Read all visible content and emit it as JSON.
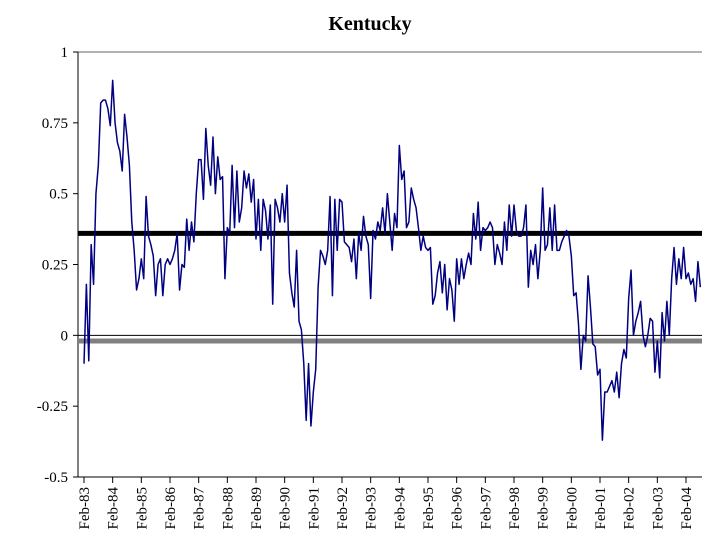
{
  "chart_data": {
    "type": "line",
    "title": "Kentucky",
    "categories": [
      "Feb-83",
      null,
      null,
      null,
      null,
      null,
      null,
      null,
      null,
      null,
      null,
      null,
      "Feb-84",
      null,
      null,
      null,
      null,
      null,
      null,
      null,
      null,
      null,
      null,
      null,
      "Feb-85",
      null,
      null,
      null,
      null,
      null,
      null,
      null,
      null,
      null,
      null,
      null,
      "Feb-86",
      null,
      null,
      null,
      null,
      null,
      null,
      null,
      null,
      null,
      null,
      null,
      "Feb-87",
      null,
      null,
      null,
      null,
      null,
      null,
      null,
      null,
      null,
      null,
      null,
      "Feb-88",
      null,
      null,
      null,
      null,
      null,
      null,
      null,
      null,
      null,
      null,
      null,
      "Feb-89",
      null,
      null,
      null,
      null,
      null,
      null,
      null,
      null,
      null,
      null,
      null,
      "Feb-90",
      null,
      null,
      null,
      null,
      null,
      null,
      null,
      null,
      null,
      null,
      null,
      "Feb-91",
      null,
      null,
      null,
      null,
      null,
      null,
      null,
      null,
      null,
      null,
      null,
      "Feb-92",
      null,
      null,
      null,
      null,
      null,
      null,
      null,
      null,
      null,
      null,
      null,
      "Feb-93",
      null,
      null,
      null,
      null,
      null,
      null,
      null,
      null,
      null,
      null,
      null,
      "Feb-94",
      null,
      null,
      null,
      null,
      null,
      null,
      null,
      null,
      null,
      null,
      null,
      "Feb-95",
      null,
      null,
      null,
      null,
      null,
      null,
      null,
      null,
      null,
      null,
      null,
      "Feb-96",
      null,
      null,
      null,
      null,
      null,
      null,
      null,
      null,
      null,
      null,
      null,
      "Feb-97",
      null,
      null,
      null,
      null,
      null,
      null,
      null,
      null,
      null,
      null,
      null,
      "Feb-98",
      null,
      null,
      null,
      null,
      null,
      null,
      null,
      null,
      null,
      null,
      null,
      "Feb-99",
      null,
      null,
      null,
      null,
      null,
      null,
      null,
      null,
      null,
      null,
      null,
      "Feb-00",
      null,
      null,
      null,
      null,
      null,
      null,
      null,
      null,
      null,
      null,
      null,
      "Feb-01",
      null,
      null,
      null,
      null,
      null,
      null,
      null,
      null,
      null,
      null,
      null,
      "Feb-02",
      null,
      null,
      null,
      null,
      null,
      null,
      null,
      null,
      null,
      null,
      null,
      "Feb-03",
      null,
      null,
      null,
      null,
      null,
      null,
      null,
      null,
      null,
      null,
      null,
      "Feb-04",
      null,
      null,
      null,
      null,
      null,
      null
    ],
    "series": [
      {
        "color": "#000080",
        "values": [
          -0.1,
          0.18,
          -0.09,
          0.32,
          0.18,
          0.5,
          0.6,
          0.82,
          0.83,
          0.83,
          0.8,
          0.74,
          0.9,
          0.75,
          0.68,
          0.65,
          0.58,
          0.78,
          0.7,
          0.6,
          0.4,
          0.3,
          0.16,
          0.2,
          0.27,
          0.2,
          0.49,
          0.35,
          0.32,
          0.28,
          0.14,
          0.25,
          0.27,
          0.14,
          0.25,
          0.27,
          0.25,
          0.27,
          0.3,
          0.36,
          0.16,
          0.25,
          0.24,
          0.41,
          0.3,
          0.4,
          0.33,
          0.5,
          0.62,
          0.62,
          0.48,
          0.73,
          0.6,
          0.53,
          0.7,
          0.5,
          0.63,
          0.55,
          0.56,
          0.2,
          0.38,
          0.36,
          0.6,
          0.38,
          0.58,
          0.4,
          0.45,
          0.58,
          0.52,
          0.57,
          0.47,
          0.55,
          0.34,
          0.48,
          0.3,
          0.48,
          0.44,
          0.34,
          0.46,
          0.11,
          0.48,
          0.45,
          0.4,
          0.5,
          0.4,
          0.53,
          0.22,
          0.15,
          0.1,
          0.3,
          0.05,
          0.02,
          -0.1,
          -0.3,
          -0.1,
          -0.32,
          -0.2,
          -0.12,
          0.17,
          0.3,
          0.28,
          0.25,
          0.3,
          0.49,
          0.14,
          0.48,
          0.3,
          0.48,
          0.47,
          0.33,
          0.32,
          0.31,
          0.26,
          0.34,
          0.2,
          0.36,
          0.3,
          0.42,
          0.35,
          0.32,
          0.13,
          0.37,
          0.34,
          0.4,
          0.37,
          0.45,
          0.36,
          0.5,
          0.4,
          0.3,
          0.43,
          0.38,
          0.67,
          0.55,
          0.58,
          0.38,
          0.4,
          0.52,
          0.48,
          0.45,
          0.38,
          0.3,
          0.35,
          0.31,
          0.3,
          0.31,
          0.11,
          0.14,
          0.22,
          0.26,
          0.15,
          0.25,
          0.09,
          0.2,
          0.16,
          0.05,
          0.27,
          0.18,
          0.27,
          0.2,
          0.25,
          0.29,
          0.25,
          0.43,
          0.34,
          0.47,
          0.3,
          0.38,
          0.37,
          0.38,
          0.4,
          0.38,
          0.25,
          0.32,
          0.29,
          0.25,
          0.4,
          0.3,
          0.46,
          0.35,
          0.46,
          0.37,
          0.35,
          0.35,
          0.38,
          0.46,
          0.17,
          0.3,
          0.25,
          0.32,
          0.2,
          0.3,
          0.52,
          0.3,
          0.32,
          0.45,
          0.3,
          0.46,
          0.3,
          0.3,
          0.33,
          0.35,
          0.37,
          0.35,
          0.28,
          0.14,
          0.15,
          0.04,
          -0.12,
          0.0,
          -0.02,
          0.21,
          0.1,
          -0.03,
          -0.04,
          -0.14,
          -0.12,
          -0.37,
          -0.2,
          -0.2,
          -0.18,
          -0.16,
          -0.2,
          -0.13,
          -0.22,
          -0.1,
          -0.05,
          -0.08,
          0.13,
          0.23,
          0.0,
          0.05,
          0.08,
          0.12,
          0.0,
          -0.04,
          0.0,
          0.06,
          0.05,
          -0.13,
          -0.02,
          -0.15,
          0.08,
          -0.02,
          0.12,
          0.0,
          0.2,
          0.31,
          0.18,
          0.27,
          0.2,
          0.31,
          0.2,
          0.22,
          0.18,
          0.2,
          0.12,
          0.26,
          0.17
        ]
      }
    ],
    "hlines": [
      {
        "value": 0.36,
        "color": "#000000"
      },
      {
        "value": -0.02,
        "color": "#808080"
      }
    ],
    "ylim": [
      -0.5,
      1
    ],
    "yticks": [
      1,
      0.75,
      0.5,
      0.25,
      0,
      -0.25,
      -0.5
    ]
  }
}
